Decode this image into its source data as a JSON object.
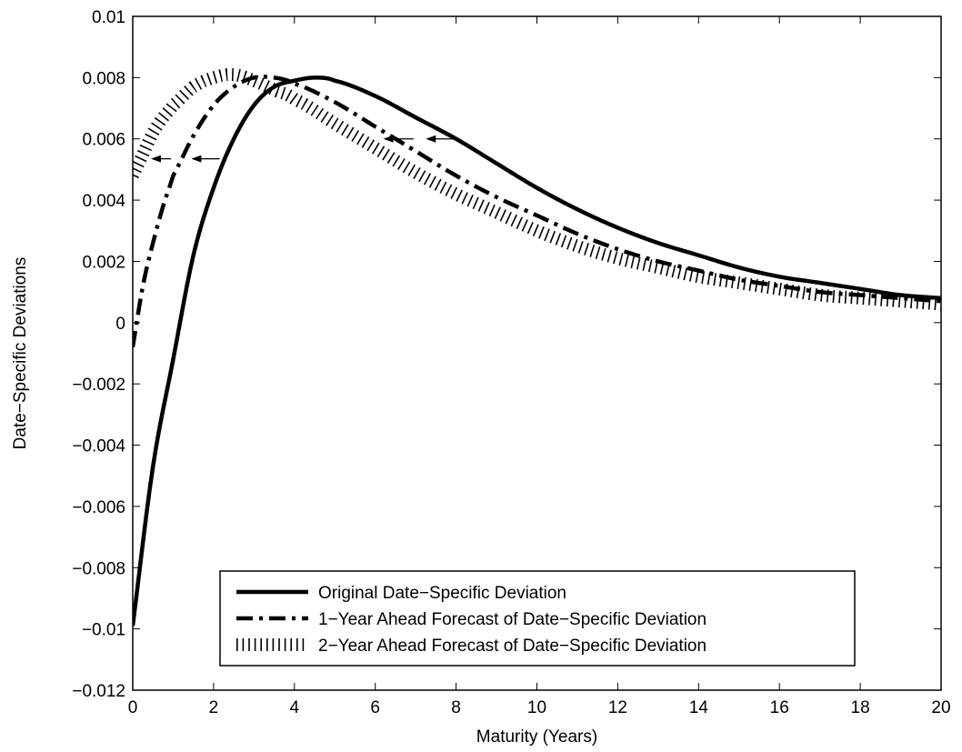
{
  "chart_data": {
    "type": "line",
    "title": "",
    "xlabel": "Maturity (Years)",
    "ylabel": "Date−Specific Deviations",
    "xlim": [
      0,
      20
    ],
    "ylim": [
      -0.012,
      0.01
    ],
    "x_ticks": [
      0,
      2,
      4,
      6,
      8,
      10,
      12,
      14,
      16,
      18,
      20
    ],
    "x_tick_labels": [
      "0",
      "2",
      "4",
      "6",
      "8",
      "10",
      "12",
      "14",
      "16",
      "18",
      "20"
    ],
    "y_ticks": [
      -0.012,
      -0.01,
      -0.008,
      -0.006,
      -0.004,
      -0.002,
      0,
      0.002,
      0.004,
      0.006,
      0.008,
      0.01
    ],
    "y_tick_labels": [
      "−0.012",
      "−0.01",
      "−0.008",
      "−0.006",
      "−0.004",
      "−0.002",
      "0",
      "0.002",
      "0.004",
      "0.006",
      "0.008",
      "0.01"
    ],
    "grid": false,
    "legend_position": "bottom-center",
    "series": [
      {
        "name": "Original Date−Specific Deviation",
        "style": "solid",
        "color": "#000000",
        "x": [
          0,
          0.5,
          1,
          1.5,
          2,
          2.5,
          3,
          3.5,
          4,
          4.5,
          5,
          6,
          7,
          8,
          9,
          10,
          11,
          12,
          13,
          14,
          15,
          16,
          17,
          18,
          19,
          20
        ],
        "y": [
          -0.0099,
          -0.0047,
          -0.0012,
          0.0022,
          0.0044,
          0.006,
          0.0071,
          0.0077,
          0.0079,
          0.008,
          0.0079,
          0.0074,
          0.0067,
          0.006,
          0.0052,
          0.0044,
          0.0037,
          0.0031,
          0.0026,
          0.0022,
          0.0018,
          0.0015,
          0.0013,
          0.0011,
          0.0009,
          0.0008
        ]
      },
      {
        "name": "1−Year Ahead Forecast of Date−Specific Deviation",
        "style": "dash-dot",
        "color": "#000000",
        "x": [
          0,
          0.25,
          0.5,
          0.75,
          1,
          1.5,
          2,
          2.5,
          3,
          3.5,
          4,
          5,
          6,
          7,
          8,
          9,
          10,
          11,
          12,
          13,
          14,
          15,
          16,
          17,
          18,
          19,
          20
        ],
        "y": [
          -0.0008,
          0.0012,
          0.0026,
          0.0038,
          0.0048,
          0.0061,
          0.0071,
          0.0077,
          0.008,
          0.008,
          0.0078,
          0.0072,
          0.0064,
          0.0056,
          0.0048,
          0.0041,
          0.0035,
          0.0029,
          0.0024,
          0.002,
          0.0017,
          0.0014,
          0.0012,
          0.001,
          0.0009,
          0.0008,
          0.0007
        ]
      },
      {
        "name": "2−Year Ahead Forecast of Date−Specific Deviation",
        "style": "hatched",
        "color": "#000000",
        "x": [
          0,
          0.25,
          0.5,
          0.75,
          1,
          1.5,
          2,
          2.5,
          3,
          3.5,
          4,
          5,
          6,
          7,
          8,
          9,
          10,
          11,
          12,
          13,
          14,
          15,
          16,
          17,
          18,
          19,
          20
        ],
        "y": [
          0.0048,
          0.0055,
          0.0062,
          0.0067,
          0.0071,
          0.0077,
          0.008,
          0.0081,
          0.0079,
          0.0076,
          0.0073,
          0.0065,
          0.0057,
          0.0049,
          0.0042,
          0.0036,
          0.003,
          0.0025,
          0.0021,
          0.0018,
          0.0015,
          0.0013,
          0.0011,
          0.0009,
          0.0008,
          0.0007,
          0.0006
        ]
      }
    ],
    "annotations": [
      {
        "type": "arrow-left",
        "x_from": 0.95,
        "x_to": 0.45,
        "y": 0.00535
      },
      {
        "type": "arrow-left",
        "x_from": 2.15,
        "x_to": 1.45,
        "y": 0.00535
      },
      {
        "type": "arrow-left",
        "x_from": 6.95,
        "x_to": 6.2,
        "y": 0.006
      },
      {
        "type": "arrow-left",
        "x_from": 8.05,
        "x_to": 7.25,
        "y": 0.006
      }
    ]
  }
}
